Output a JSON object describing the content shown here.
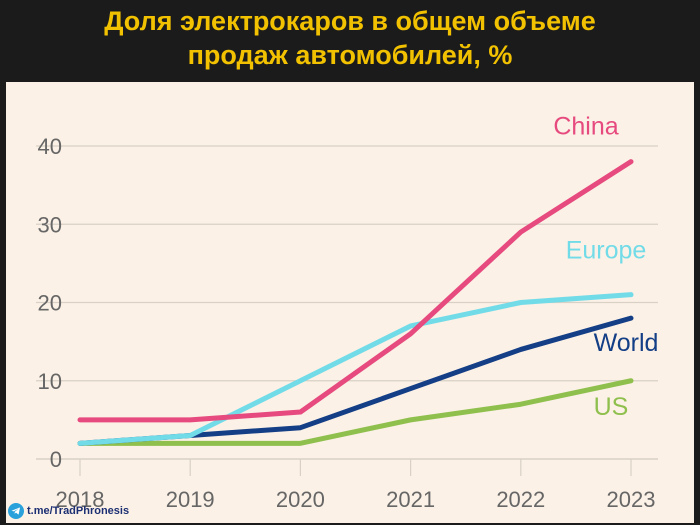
{
  "title": {
    "line1": "Доля электрокаров в общем объеме",
    "line2": "продаж автомобилей, %"
  },
  "credit": "t.me/TradPhronesis",
  "colors": {
    "title": "#f2c200",
    "panel": "#fbf1e6",
    "grid": "#d9d1c6",
    "tick": "#666666"
  },
  "chart_data": {
    "type": "line",
    "title": "Доля электрокаров в общем объеме продаж автомобилей, %",
    "xlabel": "",
    "ylabel": "",
    "x": [
      "2018",
      "2019",
      "2020",
      "2021",
      "2022",
      "2023"
    ],
    "ylim": [
      0,
      40
    ],
    "yticks": [
      "0",
      "10",
      "20",
      "30",
      "40"
    ],
    "grid": true,
    "series": [
      {
        "name": "China",
        "color": "#e64a7e",
        "values": [
          5,
          5,
          6,
          16,
          29,
          38
        ]
      },
      {
        "name": "Europe",
        "color": "#72dbe8",
        "values": [
          2,
          3,
          10,
          17,
          20,
          21
        ]
      },
      {
        "name": "World",
        "color": "#143e86",
        "values": [
          2,
          3,
          4,
          9,
          14,
          18
        ]
      },
      {
        "name": "US",
        "color": "#8fbf4d",
        "values": [
          2,
          2,
          2,
          5,
          7,
          10
        ]
      }
    ]
  }
}
